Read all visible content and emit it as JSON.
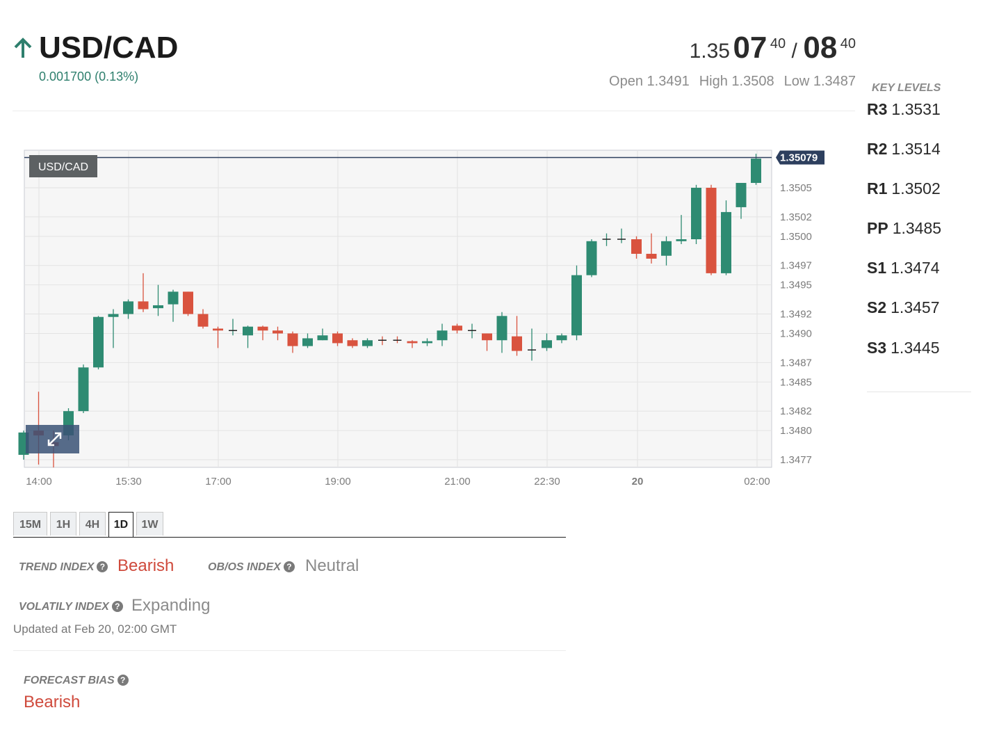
{
  "header": {
    "pair": "USD/CAD",
    "change": "0.001700 (0.13%)",
    "bid_prefix": "1.35",
    "bid_big": "07",
    "bid_sup": "40",
    "separator": "/",
    "ask_big": "08",
    "ask_sup": "40",
    "open": "Open 1.3491",
    "high": "High 1.3508",
    "low": "Low 1.3487",
    "trend_arrow_color": "#2e7f6d"
  },
  "key_levels": {
    "title": "KEY LEVELS",
    "levels": [
      {
        "name": "R3",
        "value": "1.3531"
      },
      {
        "name": "R2",
        "value": "1.3514"
      },
      {
        "name": "R1",
        "value": "1.3502"
      },
      {
        "name": "PP",
        "value": "1.3485"
      },
      {
        "name": "S1",
        "value": "1.3474"
      },
      {
        "name": "S2",
        "value": "1.3457"
      },
      {
        "name": "S3",
        "value": "1.3445"
      }
    ]
  },
  "chart_data": {
    "type": "candlestick",
    "symbol_label": "USD/CAD",
    "current_price_label": "1.35079",
    "current_price": 1.35079,
    "y_ticks": [
      "1.3505",
      "1.3502",
      "1.3500",
      "1.3497",
      "1.3495",
      "1.3492",
      "1.3490",
      "1.3487",
      "1.3485",
      "1.3482",
      "1.3480",
      "1.3477"
    ],
    "x_ticks": [
      "14:00",
      "15:30",
      "17:00",
      "19:00",
      "21:00",
      "22:30",
      "20",
      "02:00"
    ],
    "up_color": "#2e8b72",
    "down_color": "#d9533f",
    "grid": true,
    "candles": [
      {
        "o": 1.34775,
        "h": 1.348,
        "l": 1.3477,
        "c": 1.34798
      },
      {
        "o": 1.348,
        "h": 1.3484,
        "l": 1.34765,
        "c": 1.34795
      },
      {
        "o": 1.34788,
        "h": 1.348,
        "l": 1.34762,
        "c": 1.34784
      },
      {
        "o": 1.34795,
        "h": 1.34823,
        "l": 1.3479,
        "c": 1.3482
      },
      {
        "o": 1.3482,
        "h": 1.34868,
        "l": 1.34818,
        "c": 1.34865
      },
      {
        "o": 1.34865,
        "h": 1.34918,
        "l": 1.34863,
        "c": 1.34917
      },
      {
        "o": 1.34917,
        "h": 1.34925,
        "l": 1.34885,
        "c": 1.3492
      },
      {
        "o": 1.3492,
        "h": 1.34935,
        "l": 1.34915,
        "c": 1.34933
      },
      {
        "o": 1.34933,
        "h": 1.34962,
        "l": 1.34922,
        "c": 1.34925
      },
      {
        "o": 1.34926,
        "h": 1.3495,
        "l": 1.34918,
        "c": 1.34929
      },
      {
        "o": 1.3493,
        "h": 1.34945,
        "l": 1.34912,
        "c": 1.34943
      },
      {
        "o": 1.34943,
        "h": 1.34943,
        "l": 1.34918,
        "c": 1.3492
      },
      {
        "o": 1.3492,
        "h": 1.34925,
        "l": 1.34905,
        "c": 1.34907
      },
      {
        "o": 1.34905,
        "h": 1.34907,
        "l": 1.34885,
        "c": 1.34903
      },
      {
        "o": 1.34903,
        "h": 1.34915,
        "l": 1.34898,
        "c": 1.34903
      },
      {
        "o": 1.34898,
        "h": 1.34908,
        "l": 1.34885,
        "c": 1.34907
      },
      {
        "o": 1.34907,
        "h": 1.34908,
        "l": 1.34893,
        "c": 1.34903
      },
      {
        "o": 1.34903,
        "h": 1.34907,
        "l": 1.34893,
        "c": 1.349
      },
      {
        "o": 1.349,
        "h": 1.34902,
        "l": 1.3488,
        "c": 1.34887
      },
      {
        "o": 1.34887,
        "h": 1.349,
        "l": 1.34885,
        "c": 1.34895
      },
      {
        "o": 1.34893,
        "h": 1.34905,
        "l": 1.34893,
        "c": 1.34898
      },
      {
        "o": 1.349,
        "h": 1.34902,
        "l": 1.34887,
        "c": 1.3489
      },
      {
        "o": 1.34893,
        "h": 1.34895,
        "l": 1.34885,
        "c": 1.34887
      },
      {
        "o": 1.34887,
        "h": 1.34895,
        "l": 1.34885,
        "c": 1.34893
      },
      {
        "o": 1.34893,
        "h": 1.34897,
        "l": 1.34888,
        "c": 1.34892
      },
      {
        "o": 1.34893,
        "h": 1.34897,
        "l": 1.3489,
        "c": 1.34892
      },
      {
        "o": 1.34892,
        "h": 1.34893,
        "l": 1.34885,
        "c": 1.3489
      },
      {
        "o": 1.3489,
        "h": 1.34895,
        "l": 1.34887,
        "c": 1.34892
      },
      {
        "o": 1.34893,
        "h": 1.3491,
        "l": 1.34887,
        "c": 1.34903
      },
      {
        "o": 1.34908,
        "h": 1.3491,
        "l": 1.349,
        "c": 1.34903
      },
      {
        "o": 1.34903,
        "h": 1.3491,
        "l": 1.34895,
        "c": 1.34903
      },
      {
        "o": 1.349,
        "h": 1.349,
        "l": 1.34882,
        "c": 1.34893
      },
      {
        "o": 1.34893,
        "h": 1.34922,
        "l": 1.3488,
        "c": 1.34918
      },
      {
        "o": 1.34897,
        "h": 1.34918,
        "l": 1.34877,
        "c": 1.34882
      },
      {
        "o": 1.34882,
        "h": 1.34905,
        "l": 1.34872,
        "c": 1.34883
      },
      {
        "o": 1.34885,
        "h": 1.349,
        "l": 1.34882,
        "c": 1.34893
      },
      {
        "o": 1.34893,
        "h": 1.349,
        "l": 1.3489,
        "c": 1.34898
      },
      {
        "o": 1.34898,
        "h": 1.3497,
        "l": 1.34893,
        "c": 1.3496
      },
      {
        "o": 1.3496,
        "h": 1.34997,
        "l": 1.34958,
        "c": 1.34995
      },
      {
        "o": 1.34997,
        "h": 1.35003,
        "l": 1.3499,
        "c": 1.34997
      },
      {
        "o": 1.34997,
        "h": 1.35008,
        "l": 1.34993,
        "c": 1.34997
      },
      {
        "o": 1.34997,
        "h": 1.35,
        "l": 1.34977,
        "c": 1.34982
      },
      {
        "o": 1.34982,
        "h": 1.35003,
        "l": 1.34972,
        "c": 1.34977
      },
      {
        "o": 1.3498,
        "h": 1.35,
        "l": 1.3497,
        "c": 1.34995
      },
      {
        "o": 1.34995,
        "h": 1.35022,
        "l": 1.34992,
        "c": 1.34997
      },
      {
        "o": 1.34997,
        "h": 1.35053,
        "l": 1.34992,
        "c": 1.3505
      },
      {
        "o": 1.3505,
        "h": 1.35053,
        "l": 1.3496,
        "c": 1.34962
      },
      {
        "o": 1.34962,
        "h": 1.35037,
        "l": 1.3496,
        "c": 1.35025
      },
      {
        "o": 1.3503,
        "h": 1.35055,
        "l": 1.35018,
        "c": 1.35055
      },
      {
        "o": 1.35055,
        "h": 1.35085,
        "l": 1.35053,
        "c": 1.3508
      }
    ]
  },
  "timeframes": {
    "items": [
      "15M",
      "1H",
      "4H",
      "1D",
      "1W"
    ],
    "active": "1D"
  },
  "indices": {
    "trend_label": "TREND INDEX",
    "trend_value": "Bearish",
    "obos_label": "OB/OS INDEX",
    "obos_value": "Neutral",
    "volatility_label": "VOLATILY INDEX",
    "volatility_value": "Expanding",
    "help_glyph": "?",
    "updated": "Updated at Feb 20, 02:00 GMT"
  },
  "forecast": {
    "label": "FORECAST BIAS",
    "value": "Bearish"
  }
}
